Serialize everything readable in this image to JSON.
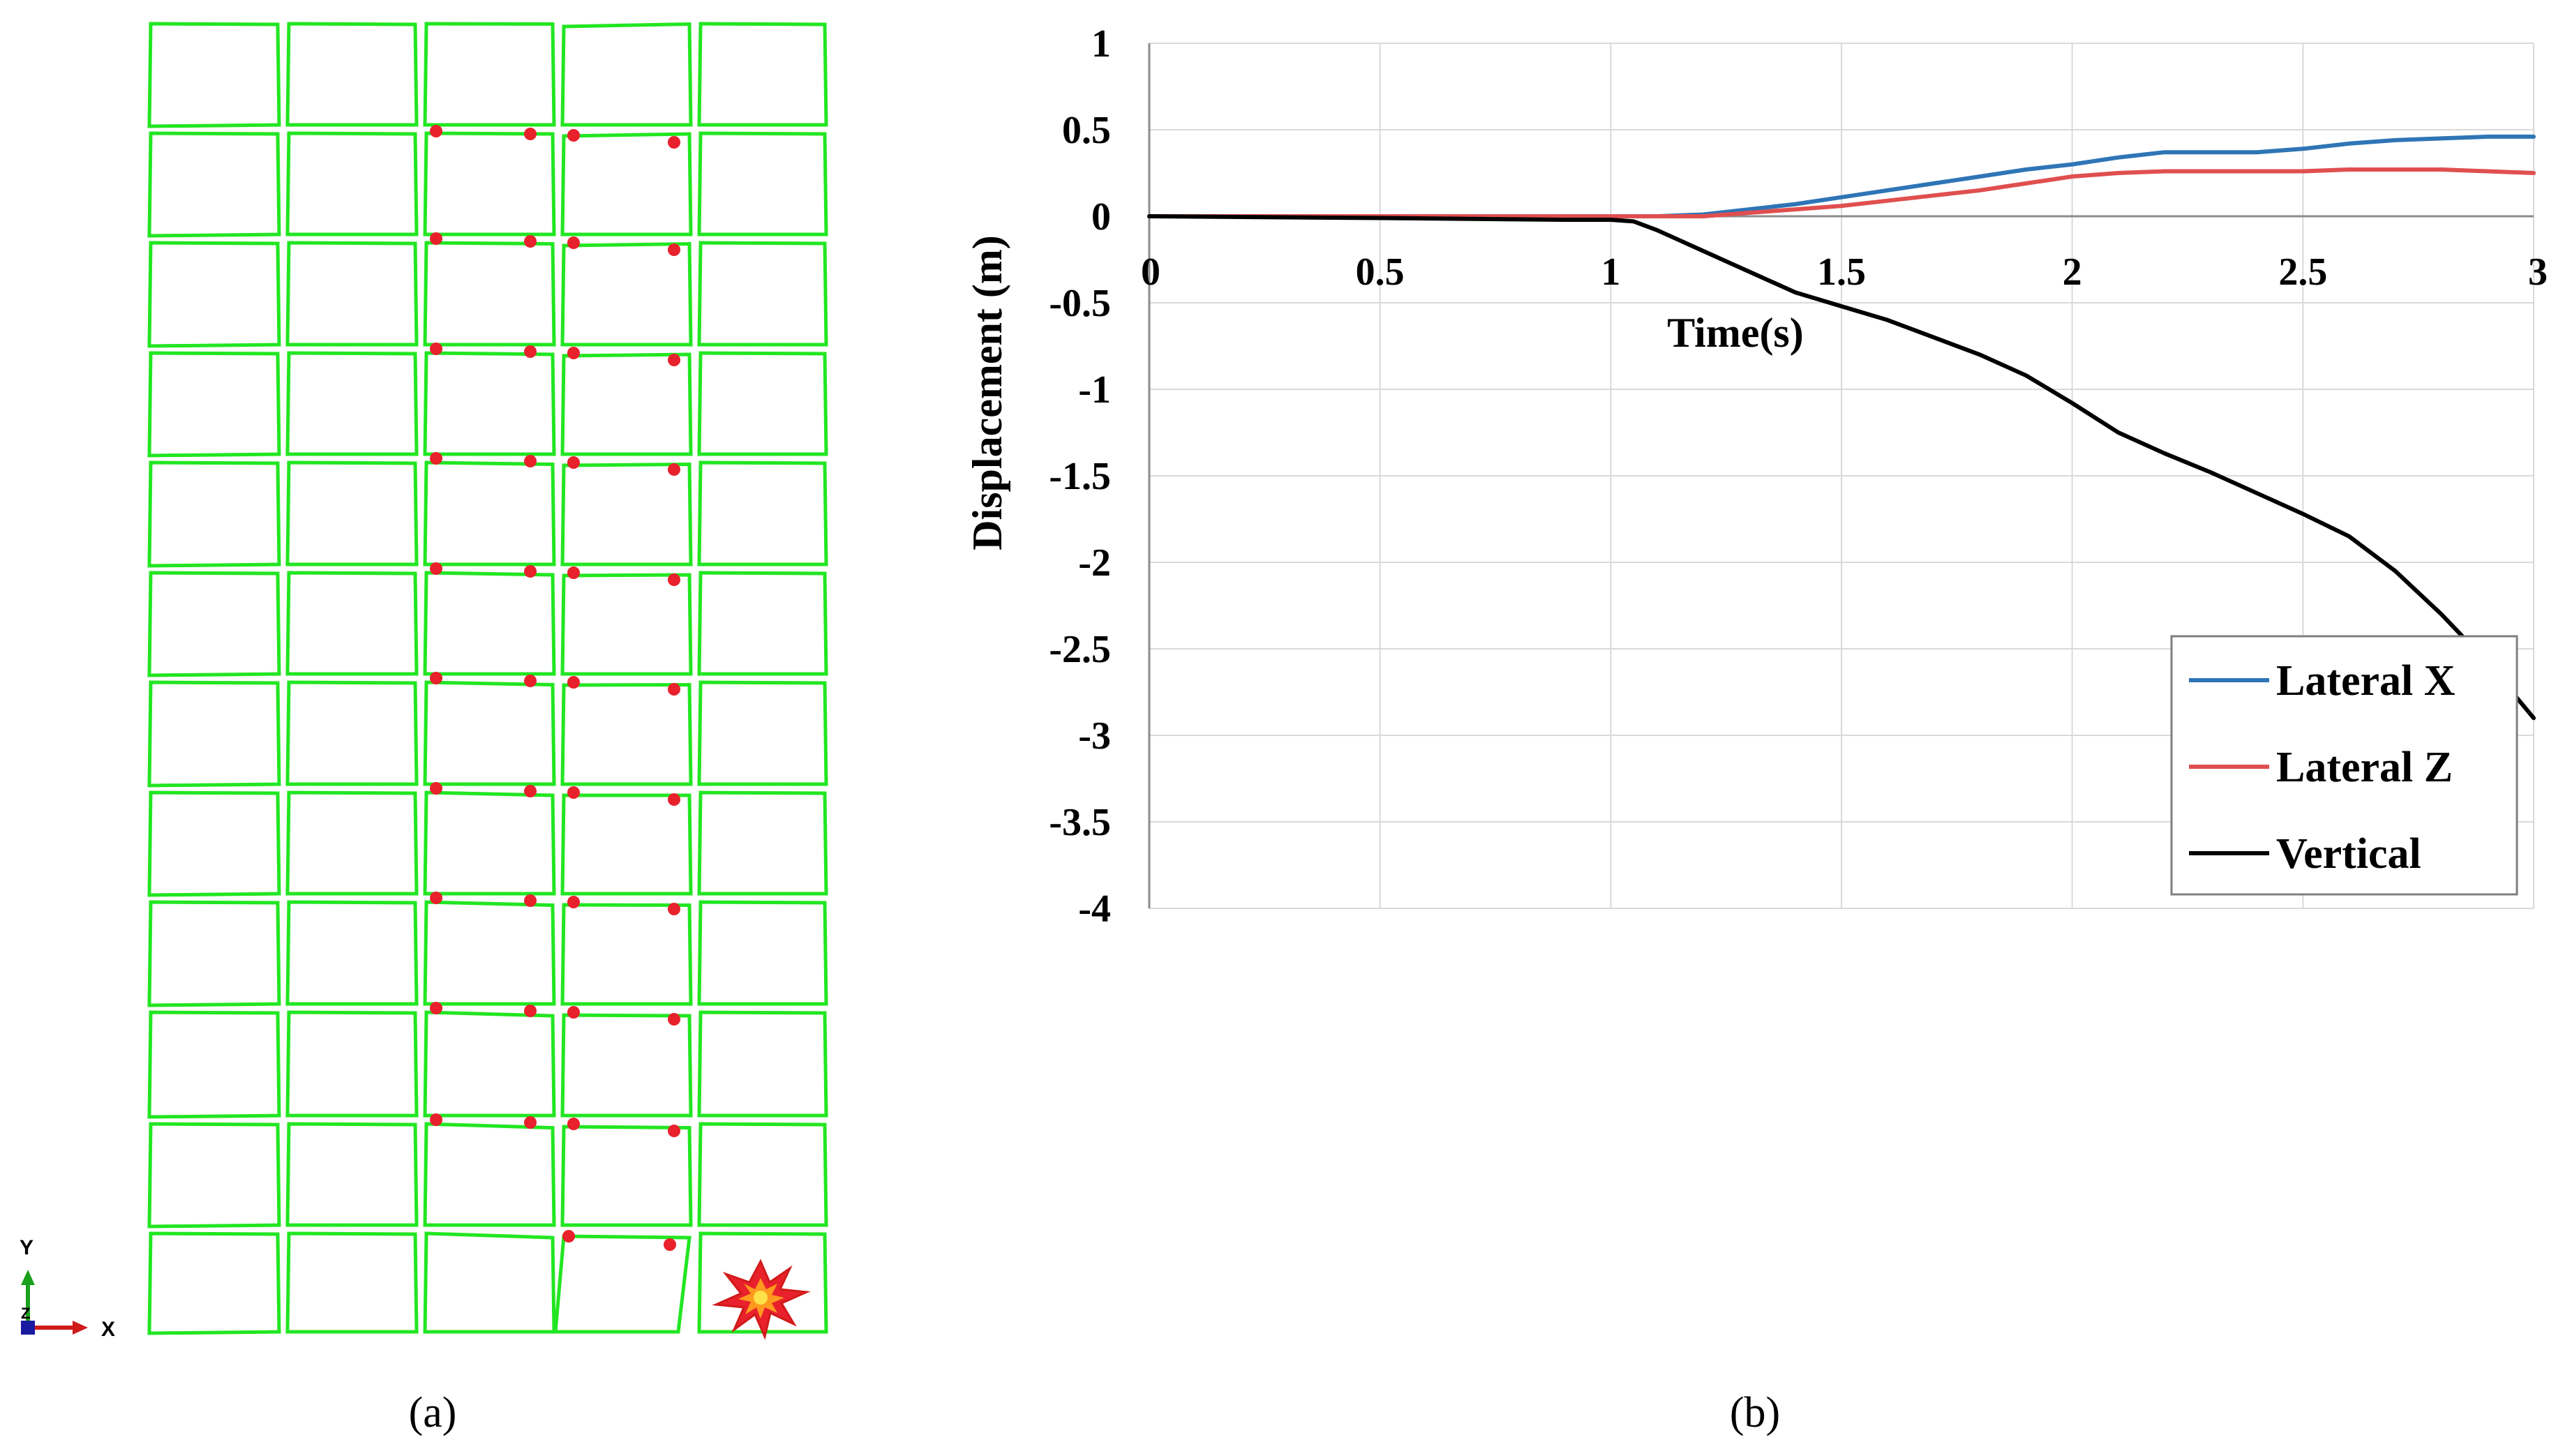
{
  "panels": {
    "a": "(a)",
    "b": "(b)"
  },
  "model": {
    "frame_color": "#22e622",
    "marker_color": "#e8212c",
    "axis_labels": {
      "y": "Y",
      "x": "X",
      "z": "Z"
    },
    "axis_colors": {
      "y": "#1aa01a",
      "x": "#d11a1a",
      "z": "#1a1aa0"
    },
    "blast_icon": "explosion-icon"
  },
  "chart_data": {
    "type": "line",
    "title": "",
    "xlabel": "Time(s)",
    "ylabel": "Displacement  (m)",
    "xlim": [
      0,
      3
    ],
    "ylim": [
      -4,
      1
    ],
    "xticks": [
      "0",
      "0.5",
      "1",
      "1.5",
      "2",
      "2.5",
      "3"
    ],
    "yticks": [
      "1",
      "0.5",
      "0",
      "-0.5",
      "-1",
      "-1.5",
      "-2",
      "-2.5",
      "-3",
      "-3.5",
      "-4"
    ],
    "grid": true,
    "legend_position": "bottom-right",
    "series": [
      {
        "name": "Lateral X",
        "color": "#2e75b6",
        "x": [
          0,
          0.5,
          1.0,
          1.1,
          1.2,
          1.3,
          1.4,
          1.5,
          1.6,
          1.7,
          1.8,
          1.9,
          2.0,
          2.1,
          2.2,
          2.3,
          2.4,
          2.5,
          2.6,
          2.7,
          2.8,
          2.9,
          3.0
        ],
        "y": [
          0,
          0,
          0,
          0.0,
          0.01,
          0.04,
          0.07,
          0.11,
          0.15,
          0.19,
          0.23,
          0.27,
          0.3,
          0.34,
          0.37,
          0.37,
          0.37,
          0.39,
          0.42,
          0.44,
          0.45,
          0.46,
          0.46
        ]
      },
      {
        "name": "Lateral Z",
        "color": "#e04f4f",
        "x": [
          0,
          0.5,
          1.0,
          1.1,
          1.2,
          1.3,
          1.4,
          1.5,
          1.6,
          1.7,
          1.8,
          1.9,
          2.0,
          2.1,
          2.2,
          2.3,
          2.4,
          2.5,
          2.6,
          2.7,
          2.8,
          2.9,
          3.0
        ],
        "y": [
          0,
          0,
          0,
          0.0,
          0.0,
          0.02,
          0.04,
          0.06,
          0.09,
          0.12,
          0.15,
          0.19,
          0.23,
          0.25,
          0.26,
          0.26,
          0.26,
          0.26,
          0.27,
          0.27,
          0.27,
          0.26,
          0.25
        ]
      },
      {
        "name": "Vertical",
        "color": "#000000",
        "x": [
          0,
          0.5,
          0.9,
          1.0,
          1.05,
          1.1,
          1.15,
          1.2,
          1.3,
          1.4,
          1.5,
          1.6,
          1.7,
          1.8,
          1.9,
          2.0,
          2.1,
          2.2,
          2.3,
          2.4,
          2.5,
          2.6,
          2.7,
          2.8,
          2.9,
          3.0
        ],
        "y": [
          0,
          -0.01,
          -0.02,
          -0.02,
          -0.03,
          -0.08,
          -0.14,
          -0.2,
          -0.32,
          -0.44,
          -0.52,
          -0.6,
          -0.7,
          -0.8,
          -0.92,
          -1.08,
          -1.25,
          -1.37,
          -1.48,
          -1.6,
          -1.72,
          -1.85,
          -2.05,
          -2.3,
          -2.58,
          -2.9
        ]
      }
    ]
  }
}
